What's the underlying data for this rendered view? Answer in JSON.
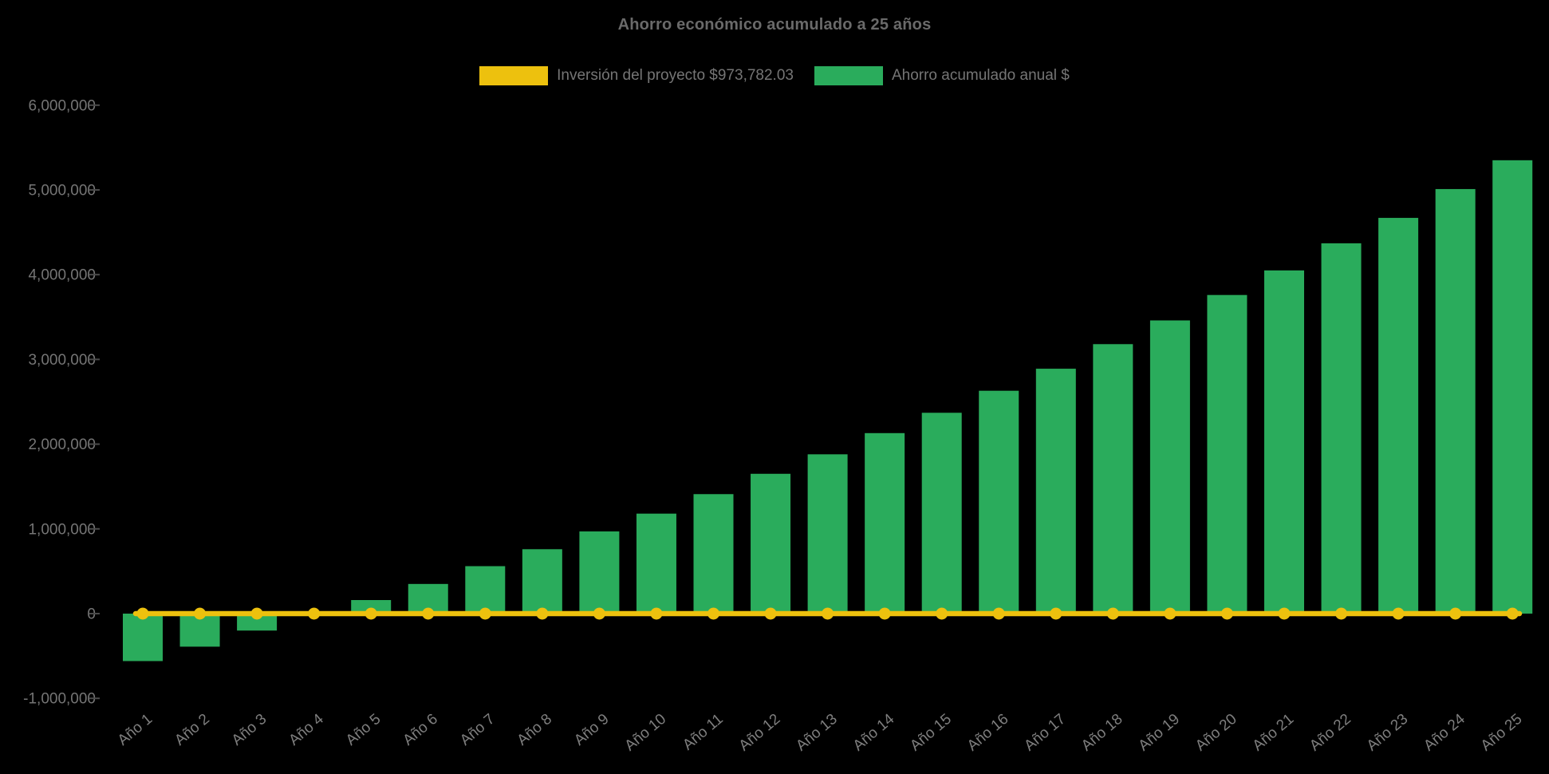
{
  "title": "Ahorro económico acumulado a 25 años",
  "legend": {
    "items": [
      {
        "key": "inversion",
        "label": "Inversión del proyecto $973,782.03",
        "color": "#EDC10E"
      },
      {
        "key": "ahorro",
        "label": "Ahorro acumulado anual $",
        "color": "#2AAC5C"
      }
    ]
  },
  "colors": {
    "background": "#000000",
    "title_text": "#6A6A6A",
    "legend_text": "#757575",
    "y_tick_text": "#757575",
    "x_tick_text": "#7E7E7E",
    "axis_tick_mark": "#4A4A4A",
    "bar_green": "#2AAC5C",
    "line_yellow": "#EDC10E"
  },
  "chart_data": {
    "type": "bar",
    "title": "Ahorro económico acumulado a 25 años",
    "xlabel": "",
    "ylabel": "",
    "ylim": [
      -1000000,
      6000000
    ],
    "ytick_step": 1000000,
    "ytick_labels": [
      "6,000,000",
      "5,000,000",
      "4,000,000",
      "3,000,000",
      "2,000,000",
      "1,000,000",
      "0",
      "-1,000,000"
    ],
    "grid": false,
    "legend_position": "top",
    "categories": [
      "Año 1",
      "Año 2",
      "Año 3",
      "Año 4",
      "Año 5",
      "Año 6",
      "Año 7",
      "Año 8",
      "Año 9",
      "Año 10",
      "Año 11",
      "Año 12",
      "Año 13",
      "Año 14",
      "Año 15",
      "Año 16",
      "Año 17",
      "Año 18",
      "Año 19",
      "Año 20",
      "Año 21",
      "Año 22",
      "Año 23",
      "Año 24",
      "Año 25"
    ],
    "series": [
      {
        "name": "Inversión del proyecto $973,782.03",
        "type": "line",
        "color": "#EDC10E",
        "point_style": "circle",
        "values": [
          0,
          0,
          0,
          0,
          0,
          0,
          0,
          0,
          0,
          0,
          0,
          0,
          0,
          0,
          0,
          0,
          0,
          0,
          0,
          0,
          0,
          0,
          0,
          0,
          0
        ]
      },
      {
        "name": "Ahorro acumulado anual $",
        "type": "bar",
        "color": "#2AAC5C",
        "values": [
          -560000,
          -390000,
          -200000,
          0,
          160000,
          350000,
          560000,
          760000,
          970000,
          1180000,
          1410000,
          1650000,
          1880000,
          2130000,
          2370000,
          2630000,
          2890000,
          3180000,
          3460000,
          3760000,
          4050000,
          4370000,
          4670000,
          5010000,
          5350000
        ]
      }
    ]
  }
}
